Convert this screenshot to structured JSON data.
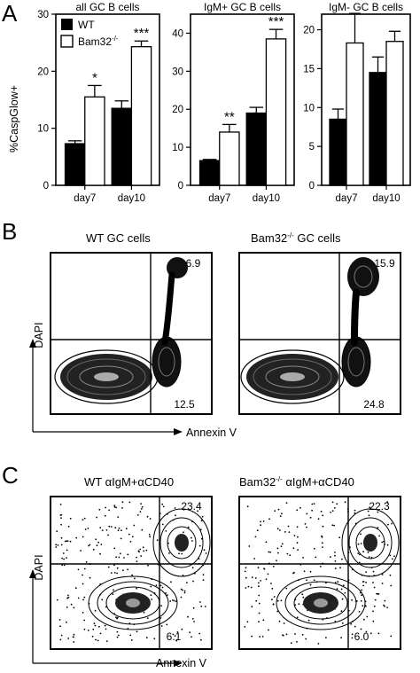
{
  "panels": {
    "A": {
      "letter": "A"
    },
    "B": {
      "letter": "B"
    },
    "C": {
      "letter": "C"
    }
  },
  "legend": {
    "wt": "WT",
    "ko_base": "Bam32",
    "ko_sup": "-/-"
  },
  "colors": {
    "wt_fill": "#000000",
    "ko_fill": "#ffffff",
    "stroke": "#000000"
  },
  "chart_data": [
    {
      "type": "bar",
      "title": "all GC B cells",
      "ylabel": "%CaspGlow+",
      "categories": [
        "day7",
        "day10"
      ],
      "ylim": [
        0,
        30
      ],
      "yticks": [
        "0",
        "10",
        "20",
        "30"
      ],
      "series": [
        {
          "name": "WT",
          "values": [
            7.3,
            13.5
          ],
          "errors": [
            0.5,
            1.3
          ]
        },
        {
          "name": "Bam32-/-",
          "values": [
            15.5,
            24.3
          ],
          "errors": [
            2.0,
            1.0
          ]
        }
      ],
      "significance": [
        "*",
        "***"
      ]
    },
    {
      "type": "bar",
      "title": "IgM+ GC B cells",
      "categories": [
        "day7",
        "day10"
      ],
      "ylim": [
        0,
        45
      ],
      "yticks": [
        "0",
        "10",
        "20",
        "30",
        "40"
      ],
      "series": [
        {
          "name": "WT",
          "values": [
            6.5,
            19.0
          ],
          "errors": [
            0.3,
            1.5
          ]
        },
        {
          "name": "Bam32-/-",
          "values": [
            14.0,
            38.5
          ],
          "errors": [
            2.0,
            2.5
          ]
        }
      ],
      "significance": [
        "**",
        "***"
      ]
    },
    {
      "type": "bar",
      "title": "IgM- GC B cells",
      "categories": [
        "day7",
        "day10"
      ],
      "ylim": [
        0,
        22
      ],
      "yticks": [
        "0",
        "5",
        "10",
        "15",
        "20"
      ],
      "series": [
        {
          "name": "WT",
          "values": [
            8.5,
            14.5
          ],
          "errors": [
            1.3,
            2.0
          ]
        },
        {
          "name": "Bam32-/-",
          "values": [
            18.3,
            18.5
          ],
          "errors": [
            3.8,
            1.3
          ]
        }
      ],
      "significance": [
        "",
        ""
      ]
    }
  ],
  "flow_b": {
    "y_axis": "DAPI",
    "x_axis": "Annexin V",
    "plots": [
      {
        "title": "WT  GC cells",
        "top_right": "6.9",
        "bottom_right": "12.5"
      },
      {
        "title_base": "Bam32",
        "title_sup": "-/-",
        "title_rest": " GC cells",
        "top_right": "15.9",
        "bottom_right": "24.8"
      }
    ]
  },
  "flow_c": {
    "y_axis": "DAPI",
    "x_axis": "Annexin V",
    "plots": [
      {
        "title": "WT  αIgM+αCD40",
        "top_right": "23.4",
        "bottom_right": "6.1"
      },
      {
        "title_base": "Bam32",
        "title_sup": "-/-",
        "title_rest": " αIgM+αCD40",
        "top_right": "22.3",
        "bottom_right": "6.0"
      }
    ]
  }
}
